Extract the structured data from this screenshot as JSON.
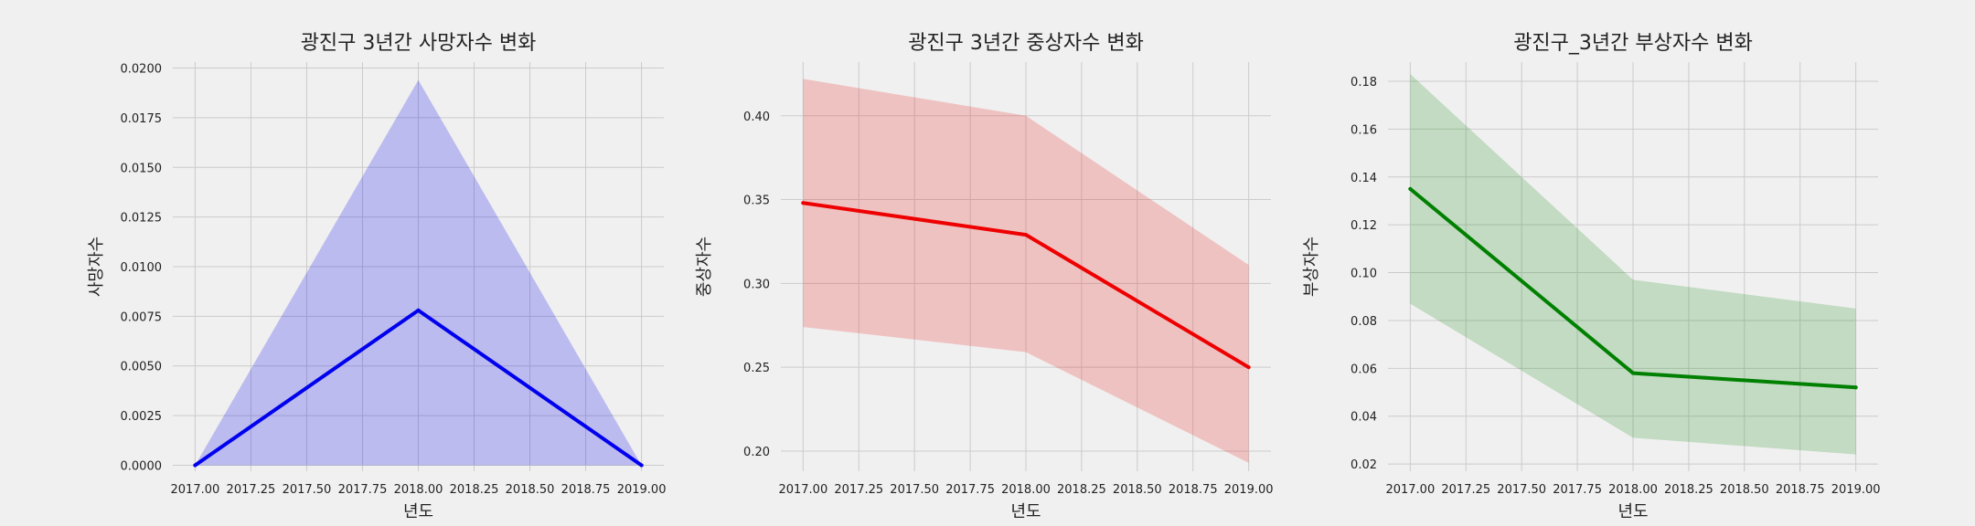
{
  "chart_data": [
    {
      "type": "line",
      "title": "광진구 3년간 사망자수 변화",
      "xlabel": "년도",
      "ylabel": "사망자수",
      "x": [
        2017.0,
        2018.0,
        2019.0
      ],
      "values": [
        0.0,
        0.0078,
        0.0
      ],
      "ci_lower": [
        0.0,
        0.0,
        0.0
      ],
      "ci_upper": [
        0.0,
        0.0194,
        0.0
      ],
      "xlim": [
        2016.9,
        2019.1
      ],
      "ylim": [
        -0.0003,
        0.0203
      ],
      "xticks": [
        "2017.00",
        "2017.25",
        "2017.50",
        "2017.75",
        "2018.00",
        "2018.25",
        "2018.50",
        "2018.75",
        "2019.00"
      ],
      "yticks": [
        "0.0000",
        "0.0025",
        "0.0050",
        "0.0075",
        "0.0100",
        "0.0125",
        "0.0150",
        "0.0175",
        "0.0200"
      ],
      "line_color": "#0000ee",
      "band_color": "#0000ee",
      "grid": true
    },
    {
      "type": "line",
      "title": "광진구 3년간 중상자수 변화",
      "xlabel": "년도",
      "ylabel": "중상자수",
      "x": [
        2017.0,
        2018.0,
        2019.0
      ],
      "values": [
        0.348,
        0.329,
        0.25
      ],
      "ci_lower": [
        0.274,
        0.259,
        0.193
      ],
      "ci_upper": [
        0.422,
        0.4,
        0.311
      ],
      "xlim": [
        2016.9,
        2019.1
      ],
      "ylim": [
        0.188,
        0.432
      ],
      "xticks": [
        "2017.00",
        "2017.25",
        "2017.50",
        "2017.75",
        "2018.00",
        "2018.25",
        "2018.50",
        "2018.75",
        "2019.00"
      ],
      "yticks": [
        "0.20",
        "0.25",
        "0.30",
        "0.35",
        "0.40"
      ],
      "line_color": "#ee0000",
      "band_color": "#ee2222",
      "grid": true
    },
    {
      "type": "line",
      "title": "광진구_3년간 부상자수 변화",
      "xlabel": "년도",
      "ylabel": "부상자수",
      "x": [
        2017.0,
        2018.0,
        2019.0
      ],
      "values": [
        0.135,
        0.058,
        0.052
      ],
      "ci_lower": [
        0.087,
        0.031,
        0.024
      ],
      "ci_upper": [
        0.183,
        0.097,
        0.085
      ],
      "xlim": [
        2016.9,
        2019.1
      ],
      "ylim": [
        0.017,
        0.188
      ],
      "xticks": [
        "2017.00",
        "2017.25",
        "2017.50",
        "2017.75",
        "2018.00",
        "2018.25",
        "2018.50",
        "2018.75",
        "2019.00"
      ],
      "yticks": [
        "0.02",
        "0.04",
        "0.06",
        "0.08",
        "0.10",
        "0.12",
        "0.14",
        "0.16",
        "0.18"
      ],
      "line_color": "#008000",
      "band_color": "#209020",
      "grid": true
    }
  ]
}
